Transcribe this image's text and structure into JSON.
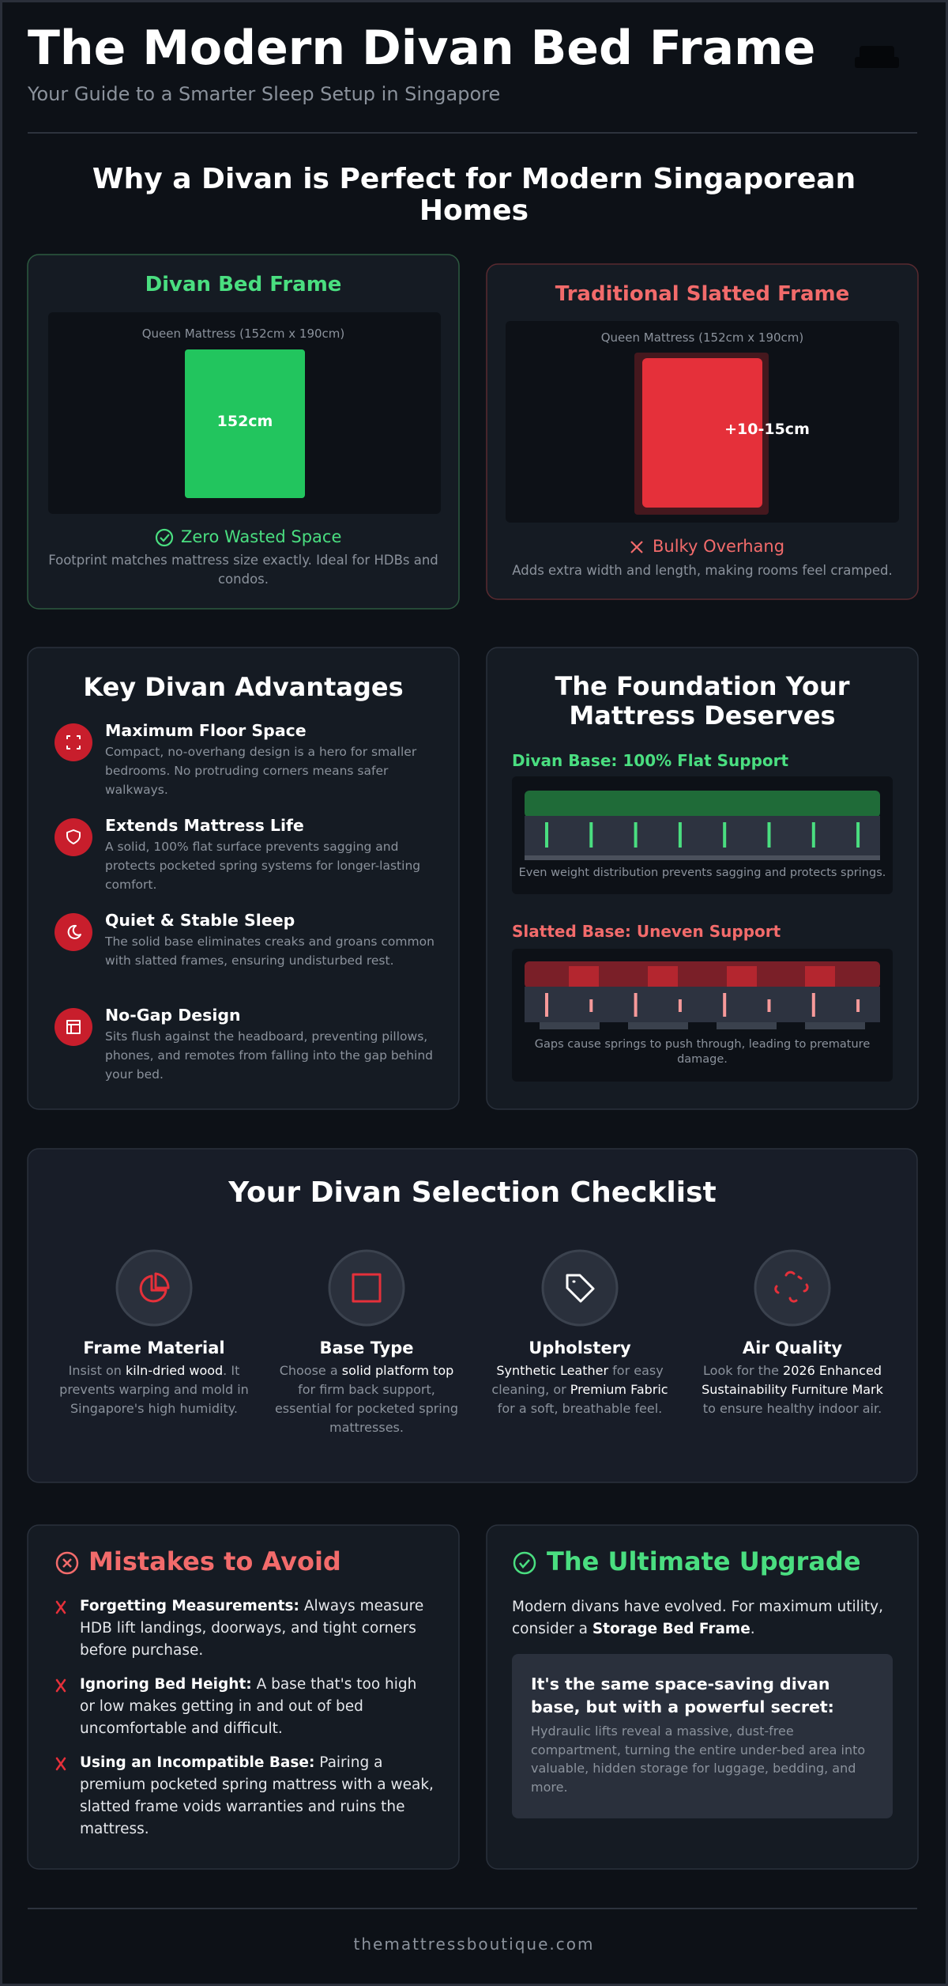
{
  "header": {
    "title": "The Modern Divan Bed Frame",
    "subtitle": "Your Guide to a Smarter Sleep Setup in Singapore"
  },
  "comparison": {
    "heading": "Why a Divan is Perfect for Modern Singaporean Homes",
    "divan": {
      "title": "Divan Bed Frame",
      "mattress_label": "Queen Mattress (152cm x 190cm)",
      "width_label": "152cm",
      "verdict": "Zero Wasted Space",
      "description": "Footprint matches mattress size exactly. Ideal for HDBs and condos."
    },
    "slatted": {
      "title": "Traditional Slatted Frame",
      "mattress_label": "Queen Mattress (152cm x 190cm)",
      "overhang_label": "+10-15cm",
      "verdict": "Bulky Overhang",
      "description": "Adds extra width and length, making rooms feel cramped."
    }
  },
  "advantages": {
    "title": "Key Divan Advantages",
    "items": [
      {
        "title": "Maximum Floor Space",
        "text": "Compact, no-overhang design is a hero for smaller bedrooms. No protruding corners means safer walkways."
      },
      {
        "title": "Extends Mattress Life",
        "text": "A solid, 100% flat surface prevents sagging and protects pocketed spring systems for longer-lasting comfort."
      },
      {
        "title": "Quiet & Stable Sleep",
        "text": "The solid base eliminates creaks and groans common with slatted frames, ensuring undisturbed rest."
      },
      {
        "title": "No-Gap Design",
        "text": "Sits flush against the headboard, preventing pillows, phones, and remotes from falling into the gap behind your bed."
      }
    ]
  },
  "foundation": {
    "title": "The Foundation Your Mattress Deserves",
    "divan": {
      "label": "Divan Base: 100% Flat Support",
      "caption": "Even weight distribution prevents sagging and protects springs."
    },
    "slatted": {
      "label": "Slatted Base: Uneven Support",
      "caption": "Gaps cause springs to push through, leading to premature damage."
    }
  },
  "checklist": {
    "title": "Your Divan Selection Checklist",
    "items": [
      {
        "title": "Frame Material",
        "text": [
          {
            "text": "Insist on "
          },
          {
            "text": "kiln-dried wood",
            "emphasis": true
          },
          {
            "text": ". It prevents warping and mold in Singapore's high humidity."
          }
        ]
      },
      {
        "title": "Base Type",
        "text": [
          {
            "text": "Choose a "
          },
          {
            "text": "solid platform top",
            "emphasis": true
          },
          {
            "text": " for firm back support, essential for pocketed spring mattresses."
          }
        ]
      },
      {
        "title": "Upholstery",
        "text": [
          {
            "text": "Synthetic Leather",
            "emphasis": true
          },
          {
            "text": " for easy cleaning, or "
          },
          {
            "text": "Premium Fabric",
            "emphasis": true
          },
          {
            "text": " for a soft, breathable feel."
          }
        ]
      },
      {
        "title": "Air Quality",
        "text": [
          {
            "text": "Look for the "
          },
          {
            "text": "2026 Enhanced Sustainability Furniture Mark",
            "emphasis": true
          },
          {
            "text": " to ensure healthy indoor air."
          }
        ]
      }
    ]
  },
  "mistakes": {
    "title": "Mistakes to Avoid",
    "items": [
      {
        "term": "Forgetting Measurements:",
        "text": " Always measure HDB lift landings, doorways, and tight corners before purchase."
      },
      {
        "term": "Ignoring Bed Height:",
        "text": " A base that's too high or low makes getting in and out of bed uncomfortable and difficult."
      },
      {
        "term": "Using an Incompatible Base:",
        "text": " Pairing a premium pocketed spring mattress with a weak, slatted frame voids warranties and ruins the mattress."
      }
    ]
  },
  "upgrade": {
    "title": "The Ultimate Upgrade",
    "intro": [
      {
        "text": "Modern divans have evolved. For maximum utility, consider a "
      },
      {
        "text": "Storage Bed Frame",
        "emphasis": true
      },
      {
        "text": "."
      }
    ],
    "callout": {
      "title": "It's the same space-saving divan base, but with a powerful secret:",
      "text": "Hydraulic lifts reveal a massive, dust-free compartment, turning the entire under-bed area into valuable, hidden storage for luggage, bedding, and more."
    }
  },
  "footer": "themattressboutique.com"
}
